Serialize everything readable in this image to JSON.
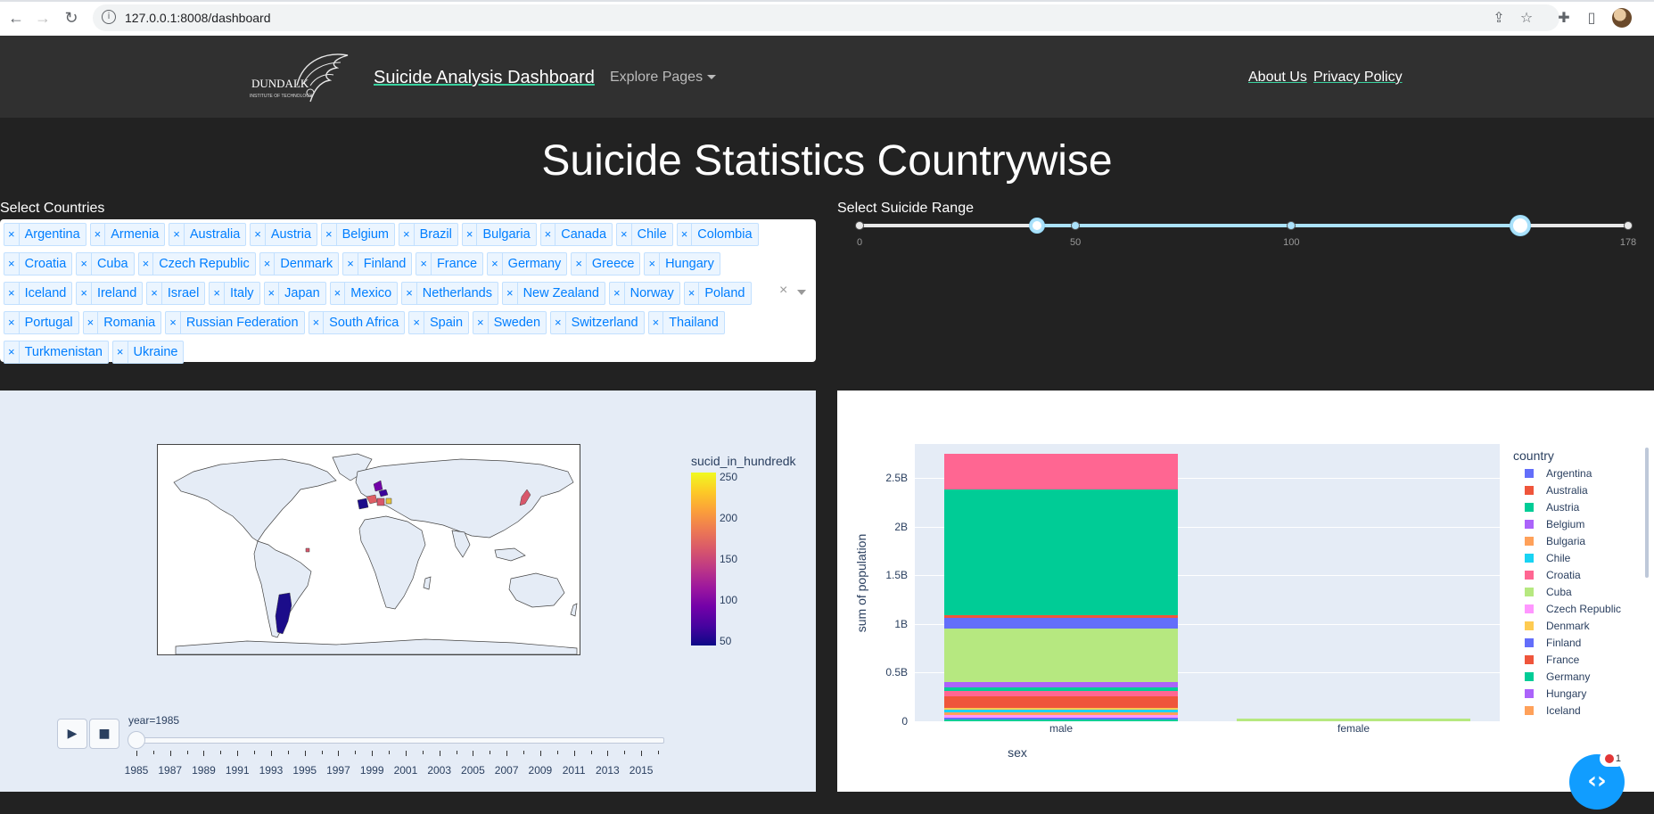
{
  "browser": {
    "url": "127.0.0.1:8008/dashboard"
  },
  "navbar": {
    "brand": "Suicide Analysis Dashboard",
    "logo_text": "DUNDALK",
    "logo_subtext": "INSTITUTE OF TECHNOLOGY",
    "explore_label": "Explore Pages",
    "about_label": "About Us",
    "privacy_label": "Privacy Policy"
  },
  "page_title": "Suicide Statistics Countrywise",
  "countries": {
    "label": "Select Countries",
    "selected": [
      "Argentina",
      "Armenia",
      "Australia",
      "Austria",
      "Belgium",
      "Brazil",
      "Bulgaria",
      "Canada",
      "Chile",
      "Colombia",
      "Croatia",
      "Cuba",
      "Czech Republic",
      "Denmark",
      "Finland",
      "France",
      "Germany",
      "Greece",
      "Hungary",
      "Iceland",
      "Ireland",
      "Israel",
      "Italy",
      "Japan",
      "Mexico",
      "Netherlands",
      "New Zealand",
      "Norway",
      "Poland",
      "Portugal",
      "Romania",
      "Russian Federation",
      "South Africa",
      "Spain",
      "Sweden",
      "Switzerland",
      "Thailand",
      "Turkmenistan",
      "Ukraine"
    ],
    "clear_symbol": "×"
  },
  "range": {
    "label": "Select Suicide Range",
    "min": 0,
    "max": 178,
    "value": [
      41,
      153
    ],
    "ticks": [
      "0",
      "50",
      "100",
      "178"
    ],
    "tick_values": [
      0,
      50,
      100,
      178
    ]
  },
  "map": {
    "colorbar_title": "sucid_in_hundredk",
    "colorbar_ticks": [
      "250",
      "200",
      "150",
      "100",
      "50"
    ],
    "colorbar_tick_values": [
      250,
      200,
      150,
      100,
      50
    ],
    "colorbar_range": [
      45,
      255
    ],
    "year_label": "year=1985",
    "year_ticks": [
      "1985",
      "1987",
      "1989",
      "1991",
      "1993",
      "1995",
      "1997",
      "1999",
      "2001",
      "2003",
      "2005",
      "2007",
      "2009",
      "2011",
      "2013",
      "2015"
    ],
    "year_range": [
      1985,
      2016
    ],
    "play_symbol": "▶",
    "stop_symbol": "■",
    "colors": {
      "argentina": "#1b0c8a",
      "europe_low": "#3b049a",
      "europe_high": "#de5f65",
      "japan": "#d8576b"
    }
  },
  "chart_data": {
    "type": "bar",
    "stacked": true,
    "xlabel": "sex",
    "ylabel": "sum of population",
    "categories": [
      "male",
      "female"
    ],
    "y_ticks": [
      "0",
      "0.5B",
      "1B",
      "1.5B",
      "2B",
      "2.5B"
    ],
    "y_tick_values": [
      0,
      0.5,
      1,
      1.5,
      2,
      2.5
    ],
    "ylim": [
      0,
      2.85
    ],
    "legend_title": "country",
    "legend": [
      {
        "name": "Argentina",
        "color": "#636efa"
      },
      {
        "name": "Australia",
        "color": "#ef553b"
      },
      {
        "name": "Austria",
        "color": "#00cc96"
      },
      {
        "name": "Belgium",
        "color": "#ab63fa"
      },
      {
        "name": "Bulgaria",
        "color": "#ffa15a"
      },
      {
        "name": "Chile",
        "color": "#19d3f3"
      },
      {
        "name": "Croatia",
        "color": "#ff6692"
      },
      {
        "name": "Cuba",
        "color": "#b6e880"
      },
      {
        "name": "Czech Republic",
        "color": "#ff97ff"
      },
      {
        "name": "Denmark",
        "color": "#fecb52"
      },
      {
        "name": "Finland",
        "color": "#636efa"
      },
      {
        "name": "France",
        "color": "#ef553b"
      },
      {
        "name": "Germany",
        "color": "#00cc96"
      },
      {
        "name": "Hungary",
        "color": "#ab63fa"
      },
      {
        "name": "Iceland",
        "color": "#ffa15a"
      }
    ],
    "stacks": {
      "male": [
        {
          "value": 0.02,
          "color": "#00cc96"
        },
        {
          "value": 0.02,
          "color": "#636efa"
        },
        {
          "value": 0.02,
          "color": "#ff97ff"
        },
        {
          "value": 0.03,
          "color": "#ffa15a"
        },
        {
          "value": 0.03,
          "color": "#19d3f3"
        },
        {
          "value": 0.02,
          "color": "#fecb52"
        },
        {
          "value": 0.12,
          "color": "#ef553b"
        },
        {
          "value": 0.05,
          "color": "#ff6692"
        },
        {
          "value": 0.04,
          "color": "#00cc96"
        },
        {
          "value": 0.05,
          "color": "#ab63fa"
        },
        {
          "value": 0.55,
          "color": "#b6e880"
        },
        {
          "value": 0.11,
          "color": "#636efa"
        },
        {
          "value": 0.03,
          "color": "#ef553b"
        },
        {
          "value": 1.29,
          "color": "#00cc96"
        },
        {
          "value": 0.37,
          "color": "#ff6692"
        }
      ],
      "female": [
        {
          "value": 0.025,
          "color": "#b6e880"
        }
      ]
    }
  },
  "fab": {
    "symbol": "‹›",
    "badge": "1"
  }
}
